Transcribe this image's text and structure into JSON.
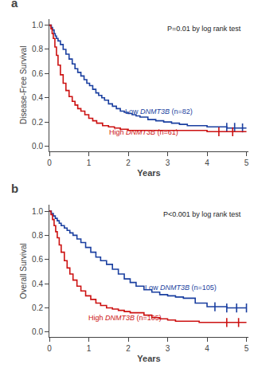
{
  "chart_data": [
    {
      "type": "line",
      "title": "a",
      "x_label": "Years",
      "y_label": "Disease-Free Survival",
      "xlim": [
        0,
        5.05
      ],
      "ylim": [
        -0.04,
        1.05
      ],
      "xticks": [
        0,
        1,
        2,
        3,
        4,
        5
      ],
      "yticks": [
        {
          "value": 0.0,
          "label": "0.0"
        },
        0.2,
        0.4,
        0.6,
        0.8,
        {
          "value": 1.0,
          "label": "1.0"
        }
      ],
      "series": [
        {
          "color": "#1a3fa0",
          "line_style": "step",
          "x": [
            0,
            0.05,
            0.08,
            0.12,
            0.15,
            0.18,
            0.22,
            0.28,
            0.35,
            0.42,
            0.5,
            0.58,
            0.65,
            0.72,
            0.8,
            0.88,
            0.95,
            1.02,
            1.1,
            1.18,
            1.25,
            1.33,
            1.4,
            1.5,
            1.6,
            1.7,
            1.8,
            1.9,
            2.0,
            2.1,
            2.2,
            2.3,
            2.5,
            2.7,
            2.9,
            3.1,
            3.3,
            3.5,
            3.7,
            4.0,
            4.2,
            4.5,
            4.7,
            5.0
          ],
          "values": [
            1.0,
            0.98,
            0.96,
            0.93,
            0.91,
            0.89,
            0.87,
            0.84,
            0.8,
            0.76,
            0.72,
            0.68,
            0.64,
            0.61,
            0.58,
            0.55,
            0.52,
            0.5,
            0.47,
            0.44,
            0.42,
            0.4,
            0.38,
            0.35,
            0.33,
            0.31,
            0.29,
            0.28,
            0.27,
            0.26,
            0.25,
            0.24,
            0.22,
            0.21,
            0.2,
            0.19,
            0.18,
            0.17,
            0.17,
            0.16,
            0.16,
            0.15,
            0.15,
            0.15
          ],
          "censor_x": [
            4.5,
            4.7,
            4.9
          ],
          "censor_y": [
            0.155,
            0.155,
            0.15
          ]
        },
        {
          "color": "#cc1111",
          "line_style": "step",
          "x": [
            0,
            0.04,
            0.07,
            0.1,
            0.14,
            0.18,
            0.22,
            0.28,
            0.35,
            0.42,
            0.5,
            0.58,
            0.65,
            0.72,
            0.8,
            0.9,
            1.0,
            1.1,
            1.2,
            1.35,
            1.5,
            1.65,
            1.8,
            1.95,
            2.0,
            2.1,
            2.5,
            3.0,
            3.5,
            4.0,
            4.3,
            4.6,
            4.8,
            5.0
          ],
          "values": [
            1.0,
            0.97,
            0.93,
            0.89,
            0.82,
            0.75,
            0.67,
            0.59,
            0.52,
            0.46,
            0.41,
            0.37,
            0.34,
            0.31,
            0.29,
            0.26,
            0.23,
            0.21,
            0.19,
            0.17,
            0.16,
            0.15,
            0.14,
            0.14,
            0.13,
            0.13,
            0.13,
            0.13,
            0.13,
            0.12,
            0.12,
            0.12,
            0.12,
            0.12
          ],
          "censor_x": [
            4.3,
            4.65
          ],
          "censor_y": [
            0.12,
            0.12
          ]
        }
      ],
      "annotations": [
        {
          "text": "P=0.01 by log rank test"
        },
        {
          "text": "Low DNMT3B (n=82)",
          "x": 1.88,
          "y": 0.285,
          "color": "#1a3fa0"
        },
        {
          "text": "High DNMT3B (n=61)",
          "x": 1.48,
          "y": 0.118,
          "color": "#cc1111"
        }
      ]
    },
    {
      "type": "line",
      "title": "b",
      "x_label": "Years",
      "y_label": "Overall Survival",
      "xlim": [
        0,
        5.05
      ],
      "ylim": [
        -0.04,
        1.05
      ],
      "xticks": [
        0,
        1,
        2,
        3,
        4,
        5
      ],
      "yticks": [
        {
          "value": 0.0,
          "label": "0.0"
        },
        0.2,
        0.4,
        0.6,
        0.8,
        {
          "value": 1.0,
          "label": "1.0"
        }
      ],
      "series": [
        {
          "color": "#1a3fa0",
          "line_style": "step",
          "x": [
            0,
            0.05,
            0.1,
            0.15,
            0.2,
            0.25,
            0.3,
            0.38,
            0.45,
            0.52,
            0.6,
            0.7,
            0.8,
            0.92,
            1.05,
            1.18,
            1.3,
            1.45,
            1.6,
            1.75,
            1.9,
            2.05,
            2.2,
            2.4,
            2.6,
            2.8,
            3.0,
            3.2,
            3.4,
            3.7,
            4.0,
            4.2,
            4.5,
            4.7,
            5.0
          ],
          "values": [
            1.0,
            0.98,
            0.96,
            0.94,
            0.92,
            0.9,
            0.88,
            0.86,
            0.84,
            0.82,
            0.8,
            0.77,
            0.74,
            0.7,
            0.66,
            0.62,
            0.59,
            0.56,
            0.52,
            0.48,
            0.44,
            0.41,
            0.38,
            0.35,
            0.33,
            0.31,
            0.3,
            0.29,
            0.28,
            0.24,
            0.21,
            0.21,
            0.2,
            0.2,
            0.2
          ],
          "censor_x": [
            4.2,
            4.5,
            4.75,
            5.0
          ],
          "censor_y": [
            0.21,
            0.2,
            0.2,
            0.2
          ]
        },
        {
          "color": "#cc1111",
          "line_style": "step",
          "x": [
            0,
            0.04,
            0.08,
            0.12,
            0.16,
            0.2,
            0.25,
            0.3,
            0.38,
            0.45,
            0.52,
            0.6,
            0.7,
            0.8,
            0.92,
            1.05,
            1.18,
            1.3,
            1.45,
            1.6,
            1.75,
            1.9,
            2.05,
            2.2,
            2.4,
            2.6,
            2.8,
            3.0,
            3.2,
            3.5,
            3.8,
            4.1,
            4.5,
            4.8,
            5.0
          ],
          "values": [
            1.0,
            0.97,
            0.93,
            0.88,
            0.83,
            0.78,
            0.72,
            0.66,
            0.59,
            0.53,
            0.48,
            0.43,
            0.38,
            0.34,
            0.3,
            0.27,
            0.24,
            0.22,
            0.2,
            0.19,
            0.18,
            0.17,
            0.16,
            0.16,
            0.14,
            0.12,
            0.11,
            0.1,
            0.09,
            0.09,
            0.08,
            0.08,
            0.08,
            0.08,
            0.08
          ],
          "censor_x": [
            4.5,
            4.8
          ],
          "censor_y": [
            0.08,
            0.08
          ]
        }
      ],
      "annotations": [
        {
          "text": "P<0.001 by log rank test"
        },
        {
          "text": "Low DNMT3B (n=105)",
          "x": 2.38,
          "y": 0.365,
          "color": "#1a3fa0"
        },
        {
          "text": "High DNMT3B (n=105)",
          "x": 0.95,
          "y": 0.118,
          "color": "#cc1111"
        }
      ]
    }
  ]
}
